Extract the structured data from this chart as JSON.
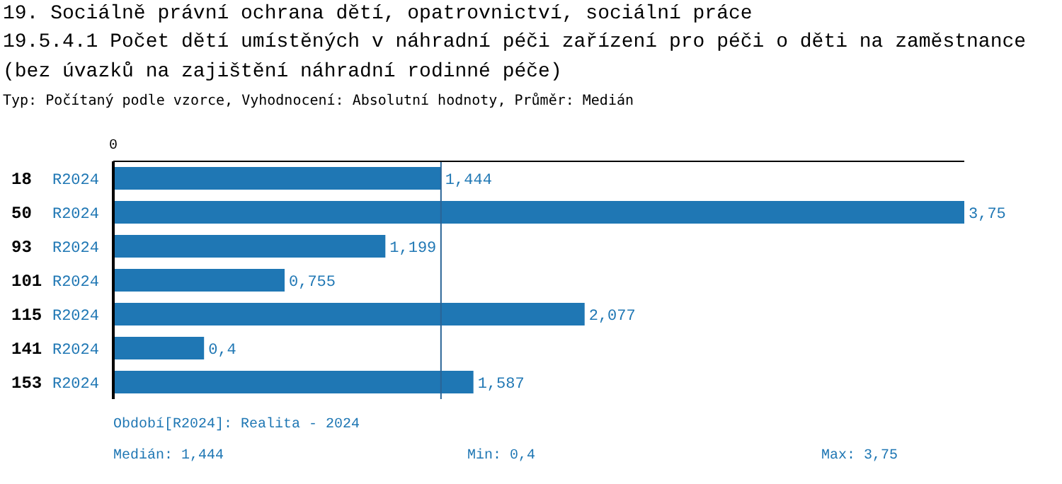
{
  "chart_data": {
    "type": "bar",
    "orientation": "horizontal",
    "title": "19. Sociálně právní ochrana dětí, opatrovnictví, sociální práce",
    "subtitle": "19.5.4.1 Počet dětí umístěných v náhradní péči zařízení pro péči o děti na zaměstnance (bez úvazků na zajištění náhradní rodinné péče)",
    "categories": [
      "18",
      "50",
      "93",
      "101",
      "115",
      "141",
      "153"
    ],
    "series": [
      {
        "name": "R2024",
        "color": "#1f77b4",
        "values": [
          1.444,
          3.75,
          1.199,
          0.755,
          2.077,
          0.4,
          1.587
        ],
        "value_labels": [
          "1,444",
          "3,75",
          "1,199",
          "0,755",
          "2,077",
          "0,4",
          "1,587"
        ]
      }
    ],
    "ref_lines": [
      {
        "axis": "x",
        "value": 1.444,
        "color": "#2a6496"
      }
    ],
    "grid": false,
    "legend": false,
    "annotations": [
      "Typ: Počítaný podle vzorce, Vyhodnocení: Absolutní hodnoty, Průměr: Medián",
      "Období[R2024]: Realita - 2024",
      "Medián: 1,444",
      "Min: 0,4",
      "Max: 3,75",
      "0"
    ]
  }
}
